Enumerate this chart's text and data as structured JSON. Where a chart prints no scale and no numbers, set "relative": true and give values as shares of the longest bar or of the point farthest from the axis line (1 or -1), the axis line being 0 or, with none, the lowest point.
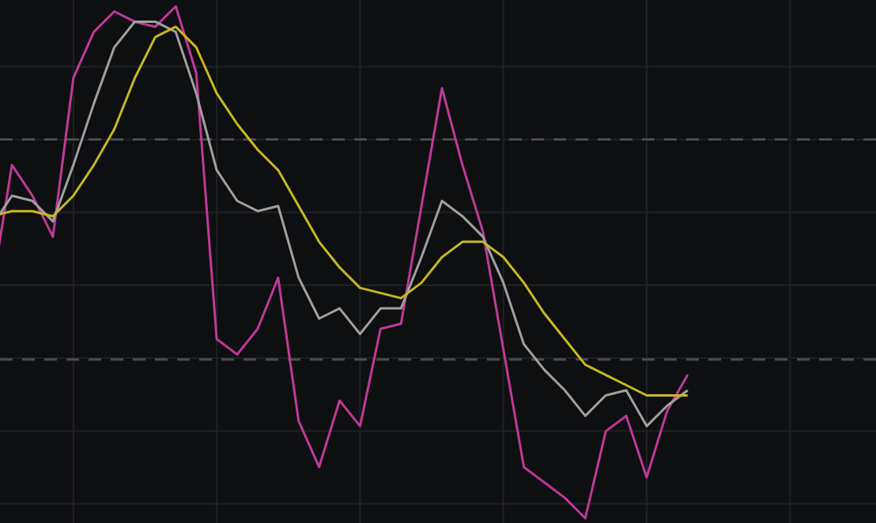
{
  "chart_data": {
    "type": "line",
    "relative": true,
    "grid": true,
    "legend": false,
    "marker": "none",
    "line_style": "solid",
    "categories": [
      null,
      null,
      null,
      null,
      null,
      null,
      null,
      null,
      null,
      null,
      null,
      null,
      null,
      null,
      null,
      null,
      null,
      null,
      null,
      null,
      null,
      null,
      null,
      null,
      null,
      null,
      null,
      null,
      null,
      null,
      null,
      null,
      null,
      null,
      null
    ],
    "series": [
      {
        "color": "#c0399a",
        "values": [
          0.44,
          0.69,
          0.63,
          0.55,
          0.86,
          0.95,
          0.99,
          0.97,
          0.96,
          1.0,
          0.87,
          0.35,
          0.32,
          0.37,
          0.47,
          0.19,
          0.1,
          0.23,
          0.18,
          0.37,
          0.38,
          0.61,
          0.84,
          0.69,
          0.56,
          0.33,
          0.1,
          0.07,
          0.04,
          0.0,
          0.17,
          0.2,
          0.08,
          0.21,
          0.28
        ]
      },
      {
        "color": "#a0a0a0",
        "values": [
          0.57,
          0.63,
          0.62,
          0.58,
          0.69,
          0.81,
          0.92,
          0.97,
          0.97,
          0.95,
          0.83,
          0.68,
          0.62,
          0.6,
          0.61,
          0.47,
          0.39,
          0.41,
          0.36,
          0.41,
          0.41,
          0.51,
          0.62,
          0.59,
          0.55,
          0.46,
          0.34,
          0.29,
          0.25,
          0.2,
          0.24,
          0.25,
          0.18,
          0.22,
          0.25
        ]
      },
      {
        "color": "#c8b820",
        "values": [
          0.59,
          0.6,
          0.6,
          0.59,
          0.63,
          0.69,
          0.76,
          0.86,
          0.94,
          0.96,
          0.92,
          0.83,
          0.77,
          0.72,
          0.68,
          0.61,
          0.54,
          0.49,
          0.45,
          0.44,
          0.43,
          0.46,
          0.51,
          0.54,
          0.54,
          0.51,
          0.46,
          0.4,
          0.35,
          0.3,
          0.28,
          0.26,
          0.24,
          0.24,
          0.24
        ]
      }
    ],
    "ref_lines": [
      {
        "axis": "y",
        "value": 0.74,
        "color": "#4a4c50",
        "line_style": "dashed"
      },
      {
        "axis": "y",
        "value": 0.31,
        "color": "#4a4c50",
        "line_style": "dashed"
      }
    ]
  }
}
